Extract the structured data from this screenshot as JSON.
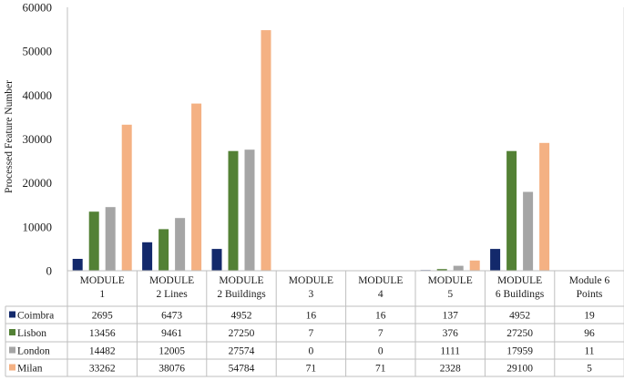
{
  "chart_data": {
    "type": "bar",
    "ylabel": "Processed Feature Number",
    "ylim": [
      0,
      60000
    ],
    "yticks": [
      0,
      10000,
      20000,
      30000,
      40000,
      50000,
      60000
    ],
    "grid": false,
    "legend_placement": "data-table-left",
    "categories": [
      [
        "MODULE",
        "1"
      ],
      [
        "MODULE",
        "2 Lines"
      ],
      [
        "MODULE",
        "2 Buildings"
      ],
      [
        "MODULE",
        "3"
      ],
      [
        "MODULE",
        "4"
      ],
      [
        "MODULE",
        "5"
      ],
      [
        "MODULE",
        "6 Buildings"
      ],
      [
        "Module 6",
        "Points"
      ]
    ],
    "series": [
      {
        "name": "Coimbra",
        "color": "#13296b",
        "values": [
          2695,
          6473,
          4952,
          16,
          16,
          137,
          4952,
          19
        ]
      },
      {
        "name": "Lisbon",
        "color": "#538135",
        "values": [
          13456,
          9461,
          27250,
          7,
          7,
          376,
          27250,
          96
        ]
      },
      {
        "name": "London",
        "color": "#a5a5a5",
        "values": [
          14482,
          12005,
          27574,
          0,
          0,
          1111,
          17959,
          11
        ]
      },
      {
        "name": "Milan",
        "color": "#f4b183",
        "values": [
          33262,
          38076,
          54784,
          71,
          71,
          2328,
          29100,
          5
        ]
      }
    ]
  }
}
